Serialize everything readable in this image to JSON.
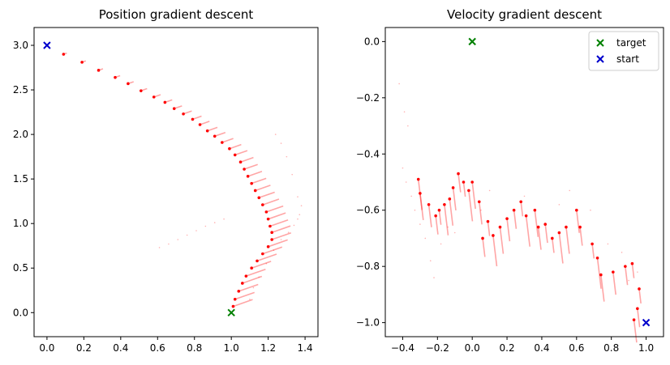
{
  "chart_data": [
    {
      "type": "scatter",
      "title": "Position gradient descent",
      "xlabel": "",
      "ylabel": "",
      "xlim": [
        -0.07,
        1.47
      ],
      "ylim": [
        -0.27,
        3.2
      ],
      "xticks": [
        0.0,
        0.2,
        0.4,
        0.6,
        0.8,
        1.0,
        1.2,
        1.4
      ],
      "xtick_labels": [
        "0.0",
        "0.2",
        "0.4",
        "0.6",
        "0.8",
        "1.0",
        "1.2",
        "1.4"
      ],
      "yticks": [
        0.0,
        0.5,
        1.0,
        1.5,
        2.0,
        2.5,
        3.0
      ],
      "ytick_labels": [
        "0.0",
        "0.5",
        "1.0",
        "1.5",
        "2.0",
        "2.5",
        "3.0"
      ],
      "grid": false,
      "legend": null,
      "trail_color": "#ff0000",
      "markers": [
        {
          "role": "target",
          "symbol": "x",
          "color": "#008000",
          "x": 1.0,
          "y": 0.0
        },
        {
          "role": "start",
          "symbol": "x",
          "color": "#0000cc",
          "x": 0.0,
          "y": 3.0
        }
      ],
      "trajectory_points": [
        [
          0.09,
          2.9
        ],
        [
          0.19,
          2.81
        ],
        [
          0.28,
          2.72
        ],
        [
          0.37,
          2.64
        ],
        [
          0.44,
          2.57
        ],
        [
          0.51,
          2.49
        ],
        [
          0.58,
          2.42
        ],
        [
          0.64,
          2.36
        ],
        [
          0.69,
          2.29
        ],
        [
          0.74,
          2.23
        ],
        [
          0.79,
          2.17
        ],
        [
          0.83,
          2.11
        ],
        [
          0.87,
          2.04
        ],
        [
          0.91,
          1.98
        ],
        [
          0.95,
          1.91
        ],
        [
          0.99,
          1.84
        ],
        [
          1.02,
          1.77
        ],
        [
          1.05,
          1.69
        ],
        [
          1.07,
          1.61
        ],
        [
          1.09,
          1.53
        ],
        [
          1.11,
          1.45
        ],
        [
          1.13,
          1.37
        ],
        [
          1.15,
          1.29
        ],
        [
          1.17,
          1.21
        ],
        [
          1.19,
          1.13
        ],
        [
          1.2,
          1.05
        ],
        [
          1.21,
          0.97
        ],
        [
          1.22,
          0.9
        ],
        [
          1.22,
          0.82
        ],
        [
          1.2,
          0.74
        ],
        [
          1.17,
          0.66
        ],
        [
          1.14,
          0.58
        ],
        [
          1.11,
          0.5
        ],
        [
          1.08,
          0.41
        ],
        [
          1.06,
          0.33
        ],
        [
          1.04,
          0.24
        ],
        [
          1.02,
          0.15
        ],
        [
          1.01,
          0.07
        ]
      ],
      "faint_points": [
        [
          0.61,
          0.73
        ],
        [
          0.66,
          0.77
        ],
        [
          0.71,
          0.82
        ],
        [
          0.76,
          0.87
        ],
        [
          0.81,
          0.92
        ],
        [
          0.86,
          0.97
        ],
        [
          0.91,
          1.01
        ],
        [
          0.96,
          1.05
        ],
        [
          1.37,
          1.1
        ],
        [
          1.36,
          1.05
        ],
        [
          1.34,
          0.98
        ],
        [
          1.31,
          0.9
        ],
        [
          1.27,
          0.82
        ],
        [
          1.23,
          0.7
        ],
        [
          1.19,
          0.55
        ],
        [
          1.15,
          0.4
        ],
        [
          1.12,
          0.28
        ],
        [
          1.1,
          0.15
        ],
        [
          1.24,
          2.0
        ],
        [
          1.27,
          1.9
        ],
        [
          1.3,
          1.75
        ],
        [
          1.33,
          1.55
        ],
        [
          1.36,
          1.3
        ],
        [
          1.38,
          1.2
        ]
      ]
    },
    {
      "type": "scatter",
      "title": "Velocity gradient descent",
      "xlabel": "",
      "ylabel": "",
      "xlim": [
        -0.5,
        1.1
      ],
      "ylim": [
        -1.05,
        0.05
      ],
      "xticks": [
        -0.4,
        -0.2,
        0.0,
        0.2,
        0.4,
        0.6,
        0.8,
        1.0
      ],
      "xtick_labels": [
        "−0.4",
        "−0.2",
        "0.0",
        "0.2",
        "0.4",
        "0.6",
        "0.8",
        "1.0"
      ],
      "yticks": [
        0.0,
        -0.2,
        -0.4,
        -0.6,
        -0.8,
        -1.0
      ],
      "ytick_labels": [
        "0.0",
        "−0.2",
        "−0.4",
        "−0.6",
        "−0.8",
        "−1.0"
      ],
      "grid": false,
      "legend": {
        "location": "upper right",
        "entries": [
          {
            "label": "target",
            "color": "#008000"
          },
          {
            "label": "start",
            "color": "#0000cc"
          }
        ]
      },
      "trail_color": "#ff0000",
      "markers": [
        {
          "role": "target",
          "symbol": "x",
          "color": "#008000",
          "x": 0.0,
          "y": 0.0
        },
        {
          "role": "start",
          "symbol": "x",
          "color": "#0000cc",
          "x": 1.0,
          "y": -1.0
        }
      ],
      "trajectory_points": [
        [
          0.92,
          -0.79
        ],
        [
          0.88,
          -0.8
        ],
        [
          0.81,
          -0.82
        ],
        [
          0.74,
          -0.83
        ],
        [
          0.72,
          -0.77
        ],
        [
          0.69,
          -0.72
        ],
        [
          0.62,
          -0.66
        ],
        [
          0.6,
          -0.6
        ],
        [
          0.54,
          -0.66
        ],
        [
          0.5,
          -0.68
        ],
        [
          0.46,
          -0.7
        ],
        [
          0.42,
          -0.65
        ],
        [
          0.38,
          -0.66
        ],
        [
          0.36,
          -0.6
        ],
        [
          0.31,
          -0.62
        ],
        [
          0.28,
          -0.57
        ],
        [
          0.24,
          -0.6
        ],
        [
          0.2,
          -0.63
        ],
        [
          0.16,
          -0.66
        ],
        [
          0.12,
          -0.69
        ],
        [
          0.09,
          -0.64
        ],
        [
          0.06,
          -0.7
        ],
        [
          0.04,
          -0.57
        ],
        [
          0.0,
          -0.5
        ],
        [
          -0.02,
          -0.53
        ],
        [
          -0.05,
          -0.5
        ],
        [
          -0.08,
          -0.47
        ],
        [
          -0.11,
          -0.52
        ],
        [
          -0.13,
          -0.56
        ],
        [
          -0.16,
          -0.58
        ],
        [
          -0.19,
          -0.6
        ],
        [
          -0.21,
          -0.62
        ],
        [
          -0.25,
          -0.58
        ],
        [
          -0.3,
          -0.54
        ],
        [
          -0.31,
          -0.49
        ],
        [
          0.96,
          -0.88
        ],
        [
          0.95,
          -0.95
        ],
        [
          0.93,
          -0.99
        ]
      ],
      "faint_points": [
        [
          -0.42,
          -0.15
        ],
        [
          -0.39,
          -0.25
        ],
        [
          -0.37,
          -0.3
        ],
        [
          -0.4,
          -0.45
        ],
        [
          -0.38,
          -0.5
        ],
        [
          -0.35,
          -0.55
        ],
        [
          -0.33,
          -0.6
        ],
        [
          -0.3,
          -0.65
        ],
        [
          -0.27,
          -0.7
        ],
        [
          -0.24,
          -0.78
        ],
        [
          -0.22,
          -0.84
        ],
        [
          -0.18,
          -0.72
        ],
        [
          -0.14,
          -0.66
        ],
        [
          -0.1,
          -0.68
        ],
        [
          0.05,
          -0.6
        ],
        [
          0.1,
          -0.53
        ],
        [
          0.3,
          -0.55
        ],
        [
          0.5,
          -0.58
        ],
        [
          0.56,
          -0.53
        ],
        [
          0.68,
          -0.6
        ],
        [
          0.78,
          -0.72
        ],
        [
          0.86,
          -0.75
        ],
        [
          0.9,
          -0.85
        ],
        [
          0.95,
          -0.82
        ]
      ]
    }
  ]
}
